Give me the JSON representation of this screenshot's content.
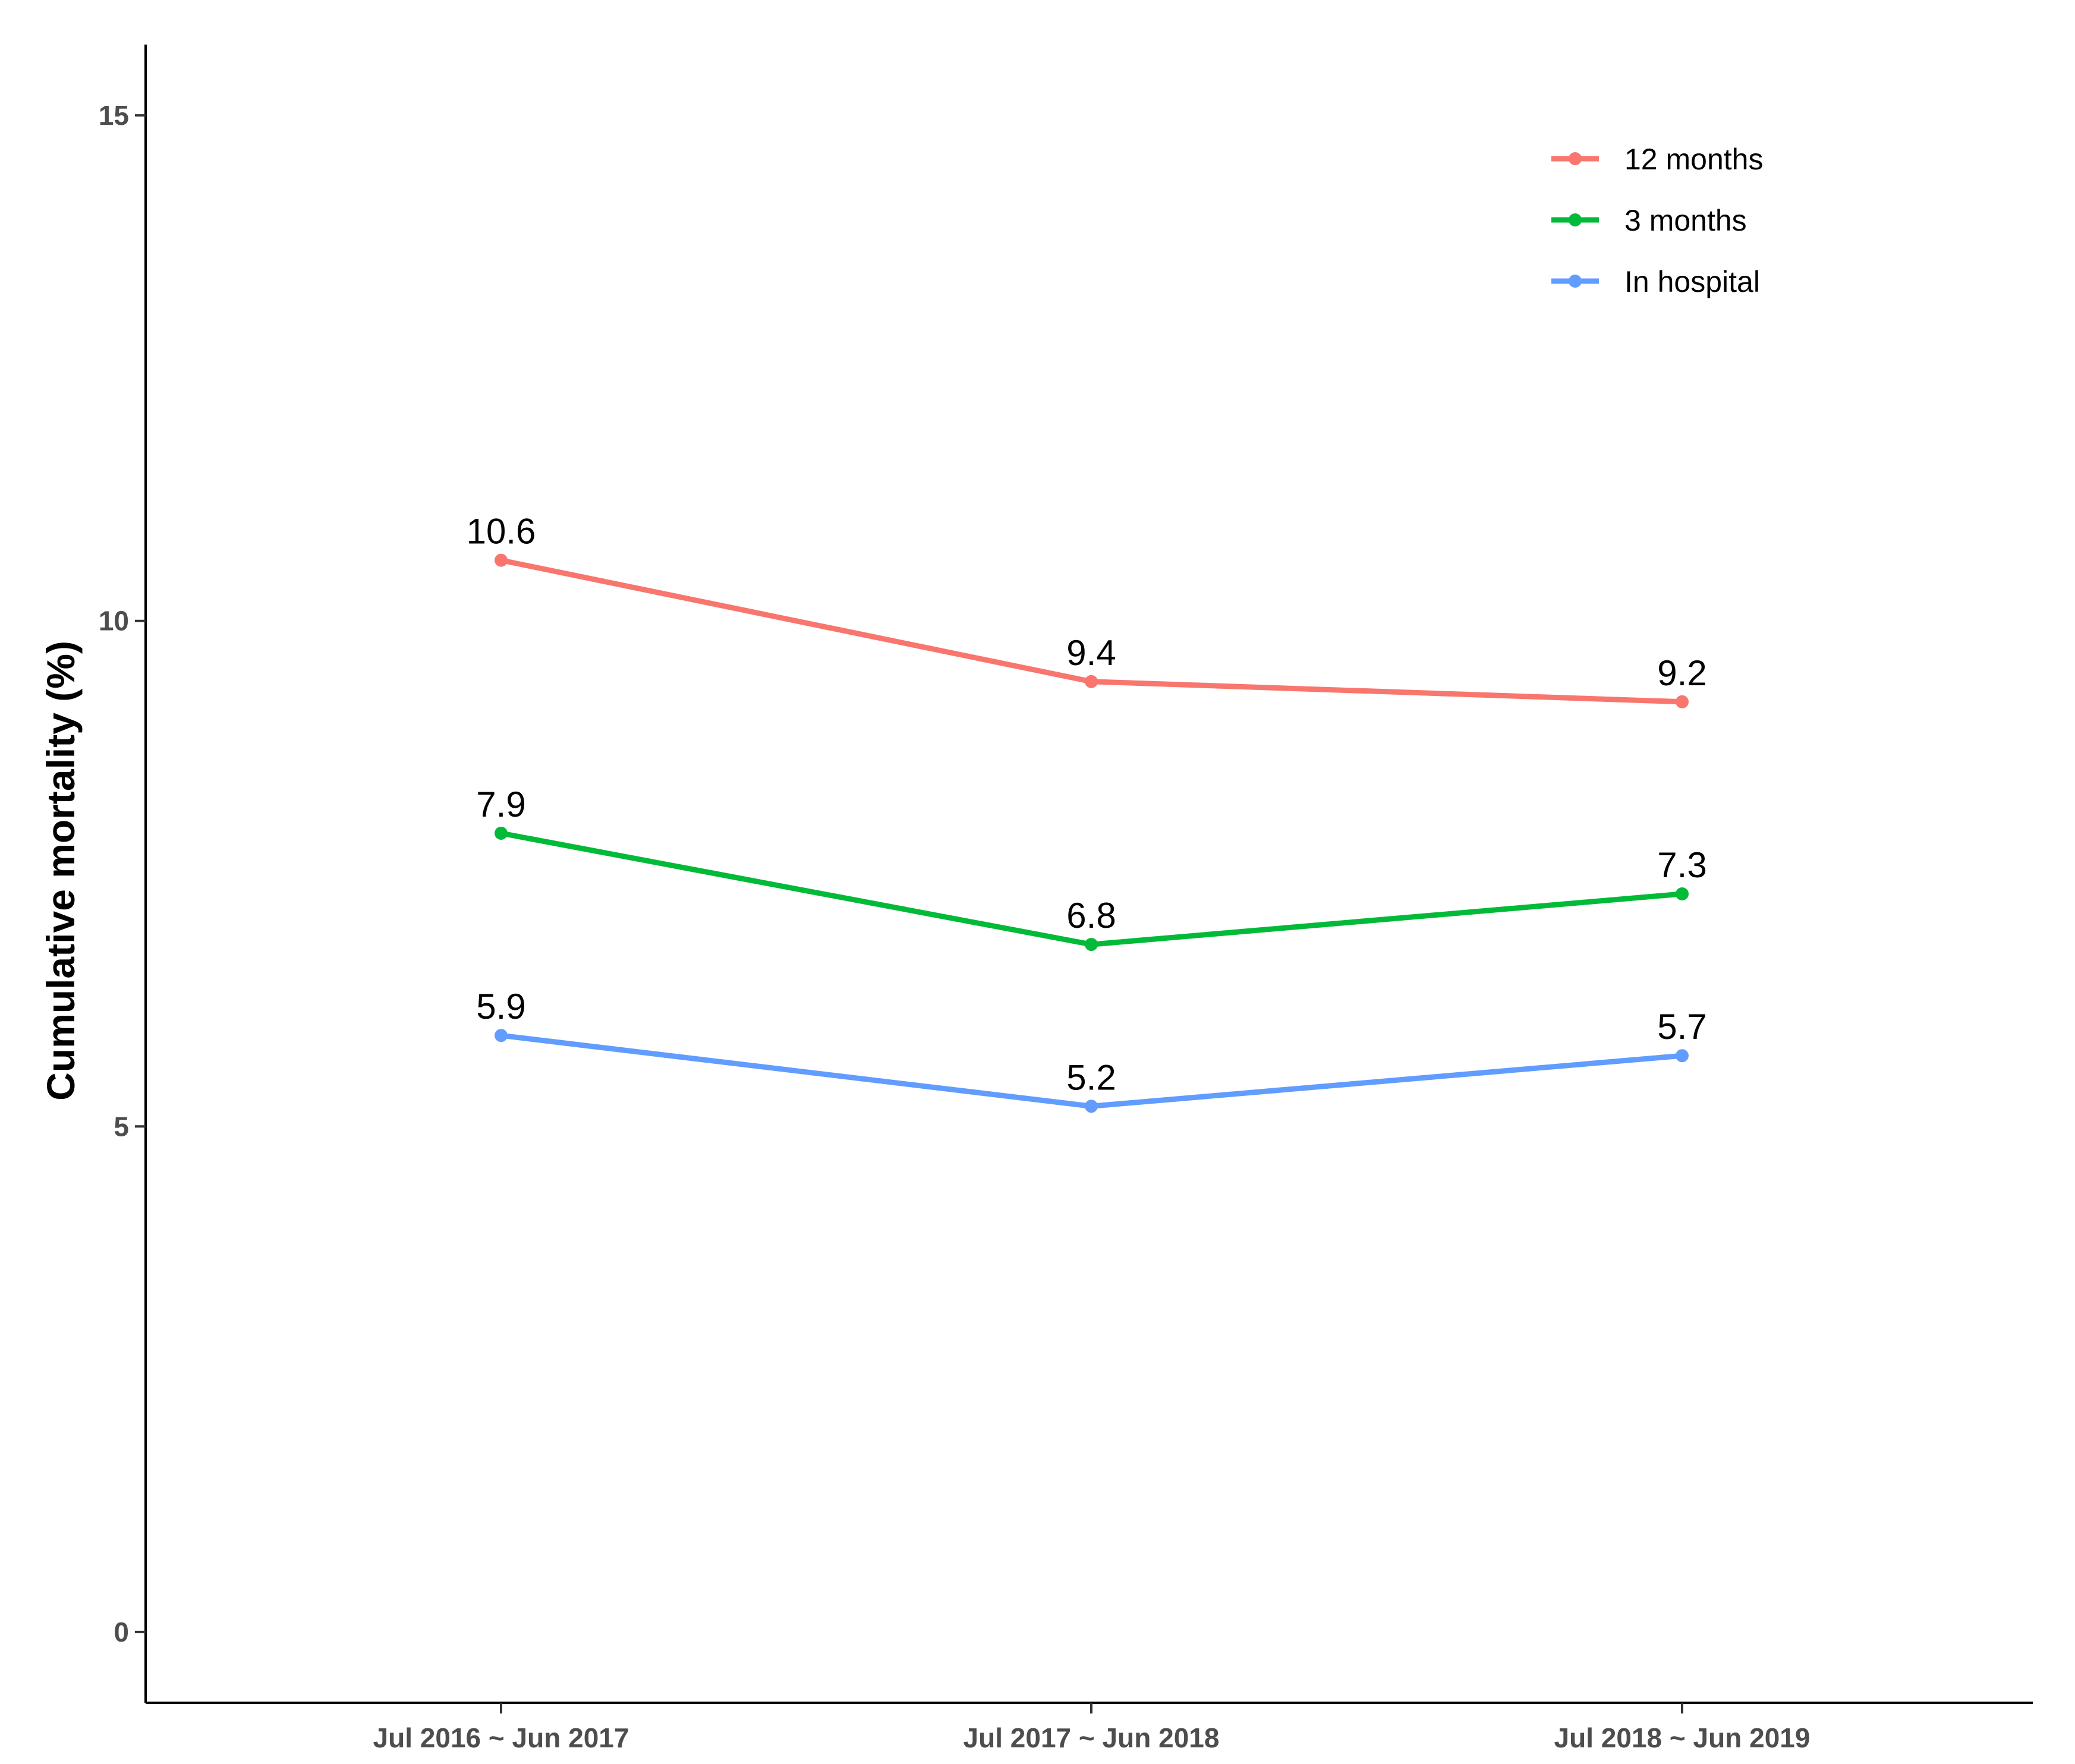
{
  "chart_data": {
    "type": "line",
    "title": "",
    "xlabel": "",
    "ylabel": "Cumulative mortality (%)",
    "categories": [
      "Jul 2016 ~ Jun 2017",
      "Jul 2017 ~ Jun 2018",
      "Jul 2018 ~ Jun 2019"
    ],
    "ylim": [
      -0.7,
      15.7
    ],
    "yticks": [
      0,
      5,
      10,
      15
    ],
    "grid": false,
    "legend_position": "top-right",
    "series": [
      {
        "name": "12 months",
        "color": "#F8766D",
        "values": [
          10.6,
          9.4,
          9.2
        ],
        "labels": [
          "10.6",
          "9.4",
          "9.2"
        ]
      },
      {
        "name": "3 months",
        "color": "#00BA38",
        "values": [
          7.9,
          6.8,
          7.3
        ],
        "labels": [
          "7.9",
          "6.8",
          "7.3"
        ]
      },
      {
        "name": "In hospital",
        "color": "#619CFF",
        "values": [
          5.9,
          5.2,
          5.7
        ],
        "labels": [
          "5.9",
          "5.2",
          "5.7"
        ]
      }
    ]
  }
}
